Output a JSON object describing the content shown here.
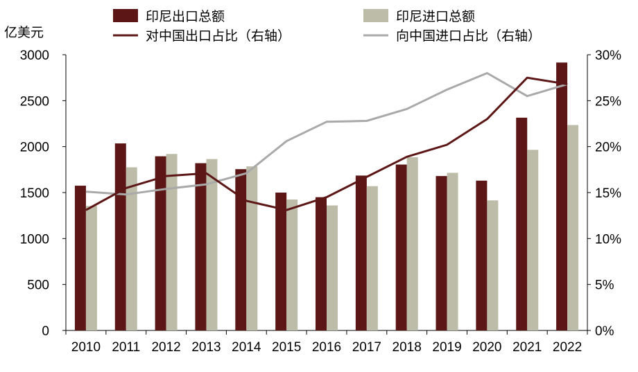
{
  "chart_data": {
    "type": "bar",
    "categories": [
      "2010",
      "2011",
      "2012",
      "2013",
      "2014",
      "2015",
      "2016",
      "2017",
      "2018",
      "2019",
      "2020",
      "2021",
      "2022"
    ],
    "y_left": {
      "label": "亿美元",
      "ylim": [
        0,
        3000
      ],
      "ticks": [
        "0",
        "500",
        "1000",
        "1500",
        "2000",
        "2500",
        "3000"
      ]
    },
    "y_right": {
      "ylim": [
        0,
        30
      ],
      "ticks": [
        "0%",
        "5%",
        "10%",
        "15%",
        "20%",
        "25%",
        "30%"
      ]
    },
    "series": [
      {
        "name": "印尼出口总额",
        "kind": "bar",
        "axis": "left",
        "color": "#5C1615",
        "values": [
          1575,
          2035,
          1895,
          1820,
          1755,
          1500,
          1450,
          1685,
          1805,
          1680,
          1630,
          2315,
          2915
        ]
      },
      {
        "name": "印尼进口总额",
        "kind": "bar",
        "axis": "left",
        "color": "#BCBCA8",
        "values": [
          1355,
          1775,
          1920,
          1865,
          1785,
          1425,
          1360,
          1570,
          1885,
          1715,
          1415,
          1965,
          2235
        ]
      },
      {
        "name": "对中国出口占比（右轴）",
        "kind": "line",
        "axis": "right",
        "color": "#5C1615",
        "values": [
          13.1,
          15.5,
          16.8,
          17.1,
          14.1,
          13.1,
          14.5,
          16.7,
          18.9,
          20.2,
          23.0,
          27.5,
          26.8
        ]
      },
      {
        "name": "向中国进口占比（右轴）",
        "kind": "line",
        "axis": "right",
        "color": "#A9A9A9",
        "values": [
          15.1,
          14.8,
          15.4,
          15.9,
          17.1,
          20.6,
          22.7,
          22.8,
          24.1,
          26.2,
          28.0,
          25.5,
          26.8
        ]
      }
    ],
    "grid": false
  }
}
